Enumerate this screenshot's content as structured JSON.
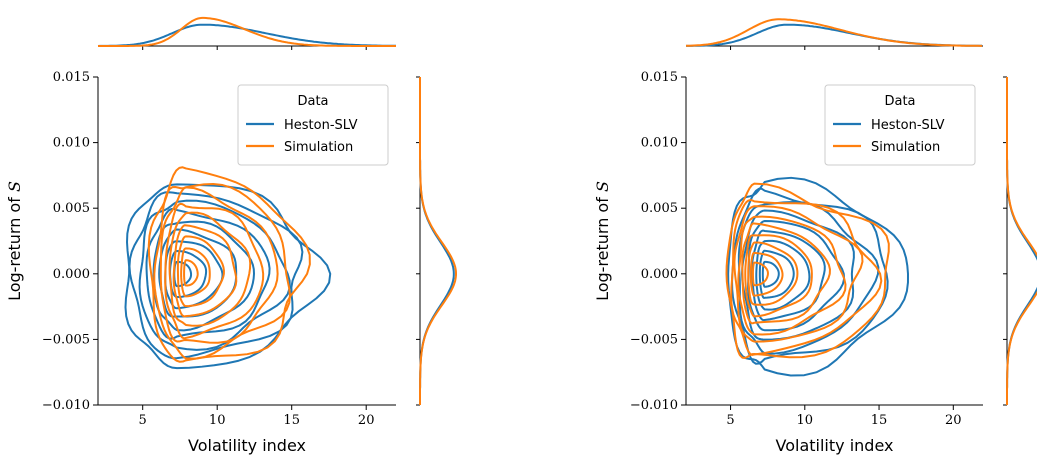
{
  "colors": {
    "heston": "#1f77b4",
    "simulation": "#ff7f0e"
  },
  "chart_data": [
    {
      "type": "kde-contour-with-marginals",
      "xlabel": "Volatility index",
      "ylabel": "Log-return of S",
      "xticks": [
        "5",
        "10",
        "15",
        "20"
      ],
      "yticks": [
        "0.015",
        "0.010",
        "0.005",
        "0.000",
        "−0.005",
        "−0.010"
      ],
      "xlim": [
        2,
        22
      ],
      "ylim": [
        -0.01,
        0.015
      ],
      "legend": {
        "title": "Data",
        "position": "upper-right",
        "entries": [
          "Heston-SLV",
          "Simulation"
        ]
      },
      "series": [
        {
          "name": "Heston-SLV",
          "center_x": 7.3,
          "center_y": 0.0,
          "outer_x_range": [
            3.8,
            16.8
          ],
          "outer_y_range": [
            -0.0071,
            0.0069
          ],
          "mode_x": 9.0
        },
        {
          "name": "Simulation",
          "center_x": 7.9,
          "center_y": 0.0,
          "outer_x_range": [
            5.5,
            15.8
          ],
          "outer_y_range": [
            -0.0068,
            0.0078
          ],
          "mode_x": 9.0
        }
      ]
    },
    {
      "type": "kde-contour-with-marginals",
      "xlabel": "Volatility index",
      "ylabel": "Log-return of S",
      "xticks": [
        "5",
        "10",
        "15",
        "20"
      ],
      "yticks": [
        "0.015",
        "0.010",
        "0.005",
        "0.000",
        "−0.005",
        "−0.010"
      ],
      "xlim": [
        2,
        22
      ],
      "ylim": [
        -0.01,
        0.015
      ],
      "legend": {
        "title": "Data",
        "position": "upper-right",
        "entries": [
          "Heston-SLV",
          "Simulation"
        ]
      },
      "series": [
        {
          "name": "Heston-SLV",
          "center_x": 7.3,
          "center_y": 0.0,
          "outer_x_range": [
            4.8,
            16.8
          ],
          "outer_y_range": [
            -0.0074,
            0.0069
          ],
          "mode_x": 8.8
        },
        {
          "name": "Simulation",
          "center_x": 6.6,
          "center_y": 0.0,
          "outer_x_range": [
            4.8,
            15.8
          ],
          "outer_y_range": [
            -0.0066,
            0.0064
          ],
          "mode_x": 8.2
        }
      ]
    }
  ]
}
